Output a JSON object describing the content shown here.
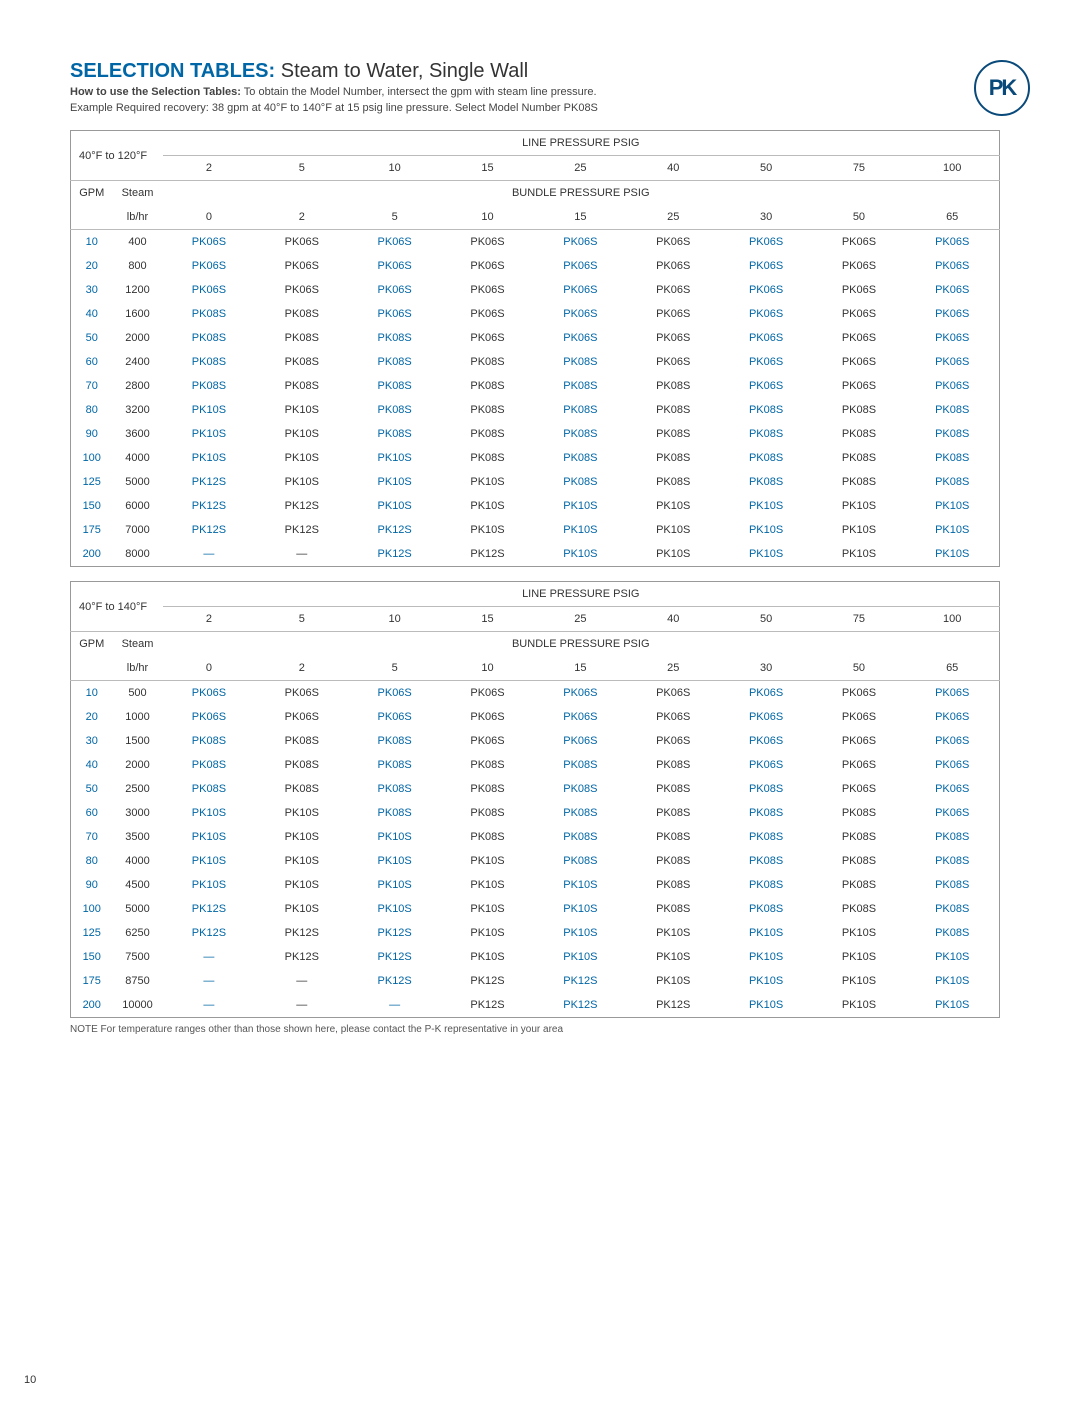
{
  "title_prefix": "SELECTION TABLES:",
  "title_rest": " Steam to Water, Single Wall",
  "howto_bold": "How to use the Selection Tables:",
  "howto_1": " To obtain the Model Number, intersect the gpm with steam line pressure.",
  "howto_2": "Example  Required recovery: 38 gpm at 40°F to 140°F at 15 psig line pressure. Select Model Number PK08S",
  "logo_text": "PK",
  "line_label": "LINE PRESSURE PSIG",
  "bundle_label": "BUNDLE PRESSURE PSIG",
  "gpm_label": "GPM",
  "steam_label_1": "Steam",
  "steam_label_2": "lb/hr",
  "line_values": [
    "2",
    "5",
    "10",
    "15",
    "25",
    "40",
    "50",
    "75",
    "100"
  ],
  "bundle_values": [
    "0",
    "2",
    "5",
    "10",
    "15",
    "25",
    "30",
    "50",
    "65"
  ],
  "footnote": "NOTE  For temperature ranges other than those shown here, please contact the P-K representative in your area",
  "pagenum": "10",
  "colors": {
    "brand": "#0066a6",
    "text": "#333333"
  },
  "table1": {
    "range": "40°F to 120°F",
    "rows": [
      {
        "gpm": "10",
        "steam": "400",
        "m": [
          "PK06S",
          "PK06S",
          "PK06S",
          "PK06S",
          "PK06S",
          "PK06S",
          "PK06S",
          "PK06S",
          "PK06S"
        ]
      },
      {
        "gpm": "20",
        "steam": "800",
        "m": [
          "PK06S",
          "PK06S",
          "PK06S",
          "PK06S",
          "PK06S",
          "PK06S",
          "PK06S",
          "PK06S",
          "PK06S"
        ]
      },
      {
        "gpm": "30",
        "steam": "1200",
        "m": [
          "PK06S",
          "PK06S",
          "PK06S",
          "PK06S",
          "PK06S",
          "PK06S",
          "PK06S",
          "PK06S",
          "PK06S"
        ]
      },
      {
        "gpm": "40",
        "steam": "1600",
        "m": [
          "PK08S",
          "PK08S",
          "PK06S",
          "PK06S",
          "PK06S",
          "PK06S",
          "PK06S",
          "PK06S",
          "PK06S"
        ]
      },
      {
        "gpm": "50",
        "steam": "2000",
        "m": [
          "PK08S",
          "PK08S",
          "PK08S",
          "PK06S",
          "PK06S",
          "PK06S",
          "PK06S",
          "PK06S",
          "PK06S"
        ]
      },
      {
        "gpm": "60",
        "steam": "2400",
        "m": [
          "PK08S",
          "PK08S",
          "PK08S",
          "PK08S",
          "PK08S",
          "PK06S",
          "PK06S",
          "PK06S",
          "PK06S"
        ]
      },
      {
        "gpm": "70",
        "steam": "2800",
        "m": [
          "PK08S",
          "PK08S",
          "PK08S",
          "PK08S",
          "PK08S",
          "PK08S",
          "PK06S",
          "PK06S",
          "PK06S"
        ]
      },
      {
        "gpm": "80",
        "steam": "3200",
        "m": [
          "PK10S",
          "PK10S",
          "PK08S",
          "PK08S",
          "PK08S",
          "PK08S",
          "PK08S",
          "PK08S",
          "PK08S"
        ]
      },
      {
        "gpm": "90",
        "steam": "3600",
        "m": [
          "PK10S",
          "PK10S",
          "PK08S",
          "PK08S",
          "PK08S",
          "PK08S",
          "PK08S",
          "PK08S",
          "PK08S"
        ]
      },
      {
        "gpm": "100",
        "steam": "4000",
        "m": [
          "PK10S",
          "PK10S",
          "PK10S",
          "PK08S",
          "PK08S",
          "PK08S",
          "PK08S",
          "PK08S",
          "PK08S"
        ]
      },
      {
        "gpm": "125",
        "steam": "5000",
        "m": [
          "PK12S",
          "PK10S",
          "PK10S",
          "PK10S",
          "PK08S",
          "PK08S",
          "PK08S",
          "PK08S",
          "PK08S"
        ]
      },
      {
        "gpm": "150",
        "steam": "6000",
        "m": [
          "PK12S",
          "PK12S",
          "PK10S",
          "PK10S",
          "PK10S",
          "PK10S",
          "PK10S",
          "PK10S",
          "PK10S"
        ]
      },
      {
        "gpm": "175",
        "steam": "7000",
        "m": [
          "PK12S",
          "PK12S",
          "PK12S",
          "PK10S",
          "PK10S",
          "PK10S",
          "PK10S",
          "PK10S",
          "PK10S"
        ]
      },
      {
        "gpm": "200",
        "steam": "8000",
        "m": [
          "—",
          "—",
          "PK12S",
          "PK12S",
          "PK10S",
          "PK10S",
          "PK10S",
          "PK10S",
          "PK10S"
        ]
      }
    ]
  },
  "table2": {
    "range": "40°F to 140°F",
    "rows": [
      {
        "gpm": "10",
        "steam": "500",
        "m": [
          "PK06S",
          "PK06S",
          "PK06S",
          "PK06S",
          "PK06S",
          "PK06S",
          "PK06S",
          "PK06S",
          "PK06S"
        ]
      },
      {
        "gpm": "20",
        "steam": "1000",
        "m": [
          "PK06S",
          "PK06S",
          "PK06S",
          "PK06S",
          "PK06S",
          "PK06S",
          "PK06S",
          "PK06S",
          "PK06S"
        ]
      },
      {
        "gpm": "30",
        "steam": "1500",
        "m": [
          "PK08S",
          "PK08S",
          "PK08S",
          "PK06S",
          "PK06S",
          "PK06S",
          "PK06S",
          "PK06S",
          "PK06S"
        ]
      },
      {
        "gpm": "40",
        "steam": "2000",
        "m": [
          "PK08S",
          "PK08S",
          "PK08S",
          "PK08S",
          "PK08S",
          "PK08S",
          "PK06S",
          "PK06S",
          "PK06S"
        ]
      },
      {
        "gpm": "50",
        "steam": "2500",
        "m": [
          "PK08S",
          "PK08S",
          "PK08S",
          "PK08S",
          "PK08S",
          "PK08S",
          "PK08S",
          "PK06S",
          "PK06S"
        ]
      },
      {
        "gpm": "60",
        "steam": "3000",
        "m": [
          "PK10S",
          "PK10S",
          "PK08S",
          "PK08S",
          "PK08S",
          "PK08S",
          "PK08S",
          "PK08S",
          "PK06S"
        ]
      },
      {
        "gpm": "70",
        "steam": "3500",
        "m": [
          "PK10S",
          "PK10S",
          "PK10S",
          "PK08S",
          "PK08S",
          "PK08S",
          "PK08S",
          "PK08S",
          "PK08S"
        ]
      },
      {
        "gpm": "80",
        "steam": "4000",
        "m": [
          "PK10S",
          "PK10S",
          "PK10S",
          "PK10S",
          "PK08S",
          "PK08S",
          "PK08S",
          "PK08S",
          "PK08S"
        ]
      },
      {
        "gpm": "90",
        "steam": "4500",
        "m": [
          "PK10S",
          "PK10S",
          "PK10S",
          "PK10S",
          "PK10S",
          "PK08S",
          "PK08S",
          "PK08S",
          "PK08S"
        ]
      },
      {
        "gpm": "100",
        "steam": "5000",
        "m": [
          "PK12S",
          "PK10S",
          "PK10S",
          "PK10S",
          "PK10S",
          "PK08S",
          "PK08S",
          "PK08S",
          "PK08S"
        ]
      },
      {
        "gpm": "125",
        "steam": "6250",
        "m": [
          "PK12S",
          "PK12S",
          "PK12S",
          "PK10S",
          "PK10S",
          "PK10S",
          "PK10S",
          "PK10S",
          "PK08S"
        ]
      },
      {
        "gpm": "150",
        "steam": "7500",
        "m": [
          "—",
          "PK12S",
          "PK12S",
          "PK10S",
          "PK10S",
          "PK10S",
          "PK10S",
          "PK10S",
          "PK10S"
        ]
      },
      {
        "gpm": "175",
        "steam": "8750",
        "m": [
          "—",
          "—",
          "PK12S",
          "PK12S",
          "PK12S",
          "PK10S",
          "PK10S",
          "PK10S",
          "PK10S"
        ]
      },
      {
        "gpm": "200",
        "steam": "10000",
        "m": [
          "—",
          "—",
          "—",
          "PK12S",
          "PK12S",
          "PK12S",
          "PK10S",
          "PK10S",
          "PK10S"
        ]
      }
    ]
  },
  "alt_color_cols": [
    0,
    2,
    4,
    6,
    8
  ]
}
